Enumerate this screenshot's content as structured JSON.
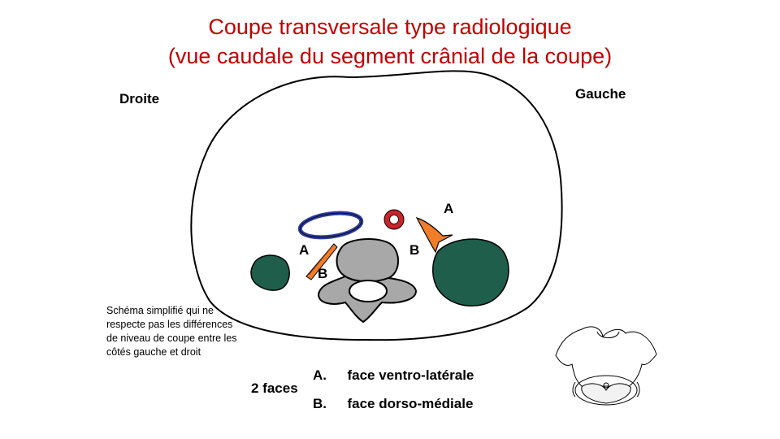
{
  "title": {
    "line1": "Coupe transversale type radiologique",
    "line2": "(vue caudale du segment crânial de la coupe)"
  },
  "sides": {
    "right": "Droite",
    "left": "Gauche"
  },
  "labels": {
    "a_left": "A",
    "b_left": "B",
    "a_right": "A",
    "b_right": "B"
  },
  "note": "Schéma simplifié qui ne respecte pas les différences de niveau de coupe entre les côtés gauche et droit",
  "legend": {
    "heading": "2 faces",
    "items": [
      {
        "key": "A.",
        "text": "face ventro-latérale"
      },
      {
        "key": "B.",
        "text": "face dorso-médiale"
      }
    ]
  },
  "colors": {
    "title": "#c00000",
    "kidney": "#1e5e4a",
    "vena_cava": "#2b3a9c",
    "aorta": "#c8242a",
    "psoas_orange": "#ef7d2a",
    "vertebra": "#a8a8a8"
  }
}
